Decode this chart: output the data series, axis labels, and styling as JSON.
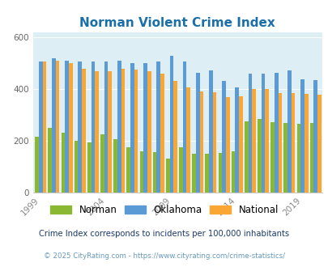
{
  "title": "Norman Violent Crime Index",
  "years": [
    1999,
    2000,
    2001,
    2002,
    2003,
    2004,
    2005,
    2006,
    2007,
    2008,
    2009,
    2010,
    2011,
    2012,
    2013,
    2014,
    2015,
    2016,
    2017,
    2018,
    2019,
    2020
  ],
  "norman": [
    215,
    248,
    230,
    200,
    192,
    225,
    205,
    175,
    160,
    155,
    130,
    175,
    150,
    150,
    153,
    160,
    273,
    285,
    270,
    268,
    265,
    268
  ],
  "oklahoma": [
    505,
    518,
    510,
    507,
    505,
    507,
    508,
    500,
    500,
    505,
    528,
    505,
    463,
    473,
    430,
    407,
    458,
    460,
    462,
    472,
    437,
    435
  ],
  "national": [
    507,
    510,
    500,
    477,
    469,
    469,
    477,
    475,
    468,
    458,
    430,
    405,
    390,
    388,
    368,
    372,
    398,
    398,
    383,
    383,
    380,
    379
  ],
  "norman_color": "#8ab833",
  "oklahoma_color": "#5b9bd5",
  "national_color": "#faa635",
  "bg_color": "#ddeef5",
  "ylabel_ticks": [
    0,
    200,
    400,
    600
  ],
  "ylim": [
    0,
    620
  ],
  "subtitle": "Crime Index corresponds to incidents per 100,000 inhabitants",
  "footer": "© 2025 CityRating.com - https://www.cityrating.com/crime-statistics/",
  "title_color": "#1a6fa8",
  "subtitle_color": "#1a3a6a",
  "footer_color": "#6699bb",
  "legend_labels": [
    "Norman",
    "Oklahoma",
    "National"
  ],
  "xtick_labels": [
    "1999",
    "2004",
    "2009",
    "2014",
    "2019"
  ],
  "xtick_positions": [
    0,
    5,
    10,
    15,
    20
  ]
}
